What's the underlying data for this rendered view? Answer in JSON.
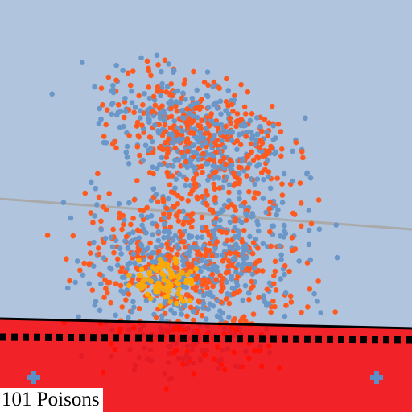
{
  "hud": {
    "label": "101 Poisons"
  }
}
